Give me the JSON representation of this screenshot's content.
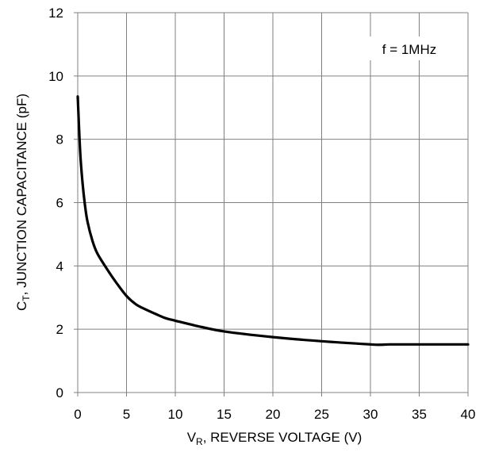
{
  "chart_data": {
    "type": "line",
    "title": "",
    "annotation": "f = 1MHz",
    "xlabel": {
      "main": "V",
      "sub": "R",
      "rest": ", REVERSE VOLTAGE (V)"
    },
    "ylabel": {
      "main": "C",
      "sub": "T",
      "rest": ", JUNCTION CAPACITANCE (pF)"
    },
    "xlim": [
      0,
      40
    ],
    "ylim": [
      0,
      12
    ],
    "xticks": [
      0,
      5,
      10,
      15,
      20,
      25,
      30,
      35,
      40
    ],
    "yticks": [
      0,
      2,
      4,
      6,
      8,
      10,
      12
    ],
    "grid": true,
    "series": [
      {
        "color": "#000000",
        "x": [
          0,
          0.25,
          0.5,
          0.75,
          1,
          1.5,
          2,
          3,
          4,
          5,
          6,
          7,
          8,
          9,
          10,
          12,
          15,
          20,
          25,
          30,
          31,
          32,
          35,
          40
        ],
        "y": [
          9.35,
          7.6,
          6.6,
          5.9,
          5.4,
          4.8,
          4.4,
          3.9,
          3.45,
          3.05,
          2.78,
          2.62,
          2.48,
          2.35,
          2.27,
          2.12,
          1.93,
          1.75,
          1.62,
          1.52,
          1.51,
          1.52,
          1.52,
          1.52
        ]
      }
    ]
  }
}
